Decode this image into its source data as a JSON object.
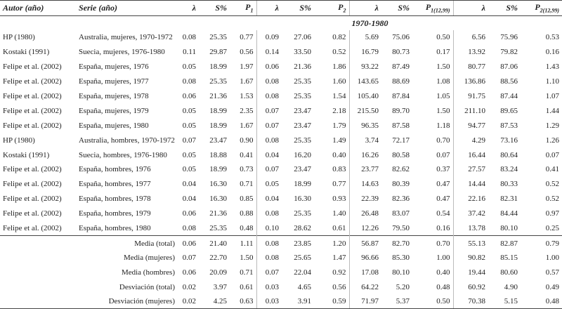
{
  "header": {
    "author": "Autor (año)",
    "series": "Serie (año)",
    "columns": [
      {
        "symbol": "λ"
      },
      {
        "symbol": "S%"
      },
      {
        "symbol": "P",
        "sub": "1"
      },
      {
        "symbol": "λ"
      },
      {
        "symbol": "S%"
      },
      {
        "symbol": "P",
        "sub": "2"
      },
      {
        "symbol": "λ"
      },
      {
        "symbol": "S%"
      },
      {
        "symbol": "P",
        "sub": "1(12,99)"
      },
      {
        "symbol": "λ"
      },
      {
        "symbol": "S%"
      },
      {
        "symbol": "P",
        "sub": "2(12,99)"
      }
    ]
  },
  "period": "1970-1980",
  "rows": [
    [
      "HP (1980)",
      "Australia, mujeres, 1970-1972",
      "0.08",
      "25.35",
      "0.77",
      "0.09",
      "27.06",
      "0.82",
      "5.69",
      "75.06",
      "0.50",
      "6.56",
      "75.96",
      "0.53"
    ],
    [
      "Kostaki (1991)",
      "Suecia, mujeres, 1976-1980",
      "0.11",
      "29.87",
      "0.56",
      "0.14",
      "33.50",
      "0.52",
      "16.79",
      "80.73",
      "0.17",
      "13.92",
      "79.82",
      "0.16"
    ],
    [
      "Felipe et al. (2002)",
      "España, mujeres, 1976",
      "0.05",
      "18.99",
      "1.97",
      "0.06",
      "21.36",
      "1.86",
      "93.22",
      "87.49",
      "1.50",
      "80.77",
      "87.06",
      "1.43"
    ],
    [
      "Felipe et al. (2002)",
      "España, mujeres, 1977",
      "0.08",
      "25.35",
      "1.67",
      "0.08",
      "25.35",
      "1.60",
      "143.65",
      "88.69",
      "1.08",
      "136.86",
      "88.56",
      "1.10"
    ],
    [
      "Felipe et al. (2002)",
      "España, mujeres, 1978",
      "0.06",
      "21.36",
      "1.53",
      "0.08",
      "25.35",
      "1.54",
      "105.40",
      "87.84",
      "1.05",
      "91.75",
      "87.44",
      "1.07"
    ],
    [
      "Felipe et al. (2002)",
      "España, mujeres, 1979",
      "0.05",
      "18.99",
      "2.35",
      "0.07",
      "23.47",
      "2.18",
      "215.50",
      "89.70",
      "1.50",
      "211.10",
      "89.65",
      "1.44"
    ],
    [
      "Felipe et al. (2002)",
      "España, mujeres, 1980",
      "0.05",
      "18.99",
      "1.67",
      "0.07",
      "23.47",
      "1.79",
      "96.35",
      "87.58",
      "1.18",
      "94.77",
      "87.53",
      "1.29"
    ],
    [
      "HP (1980)",
      "Australia, hombres, 1970-1972",
      "0.07",
      "23.47",
      "0.90",
      "0.08",
      "25.35",
      "1.49",
      "3.74",
      "72.17",
      "0.70",
      "4.29",
      "73.16",
      "1.26"
    ],
    [
      "Kostaki (1991)",
      "Suecia, hombres, 1976-1980",
      "0.05",
      "18.88",
      "0.41",
      "0.04",
      "16.20",
      "0.40",
      "16.26",
      "80.58",
      "0.07",
      "16.44",
      "80.64",
      "0.07"
    ],
    [
      "Felipe et al. (2002)",
      "España, hombres, 1976",
      "0.05",
      "18.99",
      "0.73",
      "0.07",
      "23.47",
      "0.83",
      "23.77",
      "82.62",
      "0.37",
      "27.57",
      "83.24",
      "0.41"
    ],
    [
      "Felipe et al. (2002)",
      "España, hombres, 1977",
      "0.04",
      "16.30",
      "0.71",
      "0.05",
      "18.99",
      "0.77",
      "14.63",
      "80.39",
      "0.47",
      "14.44",
      "80.33",
      "0.52"
    ],
    [
      "Felipe et al. (2002)",
      "España, hombres, 1978",
      "0.04",
      "16.30",
      "0.85",
      "0.04",
      "16.30",
      "0.93",
      "22.39",
      "82.36",
      "0.47",
      "22.16",
      "82.31",
      "0.52"
    ],
    [
      "Felipe et al. (2002)",
      "España, hombres, 1979",
      "0.06",
      "21.36",
      "0.88",
      "0.08",
      "25.35",
      "1.40",
      "26.48",
      "83.07",
      "0.54",
      "37.42",
      "84.44",
      "0.97"
    ],
    [
      "Felipe et al. (2002)",
      "España, hombres, 1980",
      "0.08",
      "25.35",
      "0.48",
      "0.10",
      "28.62",
      "0.61",
      "12.26",
      "79.50",
      "0.16",
      "13.78",
      "80.10",
      "0.25"
    ]
  ],
  "summary": [
    [
      "Media (total)",
      "0.06",
      "21.40",
      "1.11",
      "0.08",
      "23.85",
      "1.20",
      "56.87",
      "82.70",
      "0.70",
      "55.13",
      "82.87",
      "0.79"
    ],
    [
      "Media (mujeres)",
      "0.07",
      "22.70",
      "1.50",
      "0.08",
      "25.65",
      "1.47",
      "96.66",
      "85.30",
      "1.00",
      "90.82",
      "85.15",
      "1.00"
    ],
    [
      "Media (hombres)",
      "0.06",
      "20.09",
      "0.71",
      "0.07",
      "22.04",
      "0.92",
      "17.08",
      "80.10",
      "0.40",
      "19.44",
      "80.60",
      "0.57"
    ],
    [
      "Desviación (total)",
      "0.02",
      "3.97",
      "0.61",
      "0.03",
      "4.65",
      "0.56",
      "64.22",
      "5.20",
      "0.48",
      "60.92",
      "4.90",
      "0.49"
    ],
    [
      "Desviación (mujeres)",
      "0.02",
      "4.25",
      "0.63",
      "0.03",
      "3.91",
      "0.59",
      "71.97",
      "5.37",
      "0.50",
      "70.38",
      "5.15",
      "0.48"
    ]
  ]
}
